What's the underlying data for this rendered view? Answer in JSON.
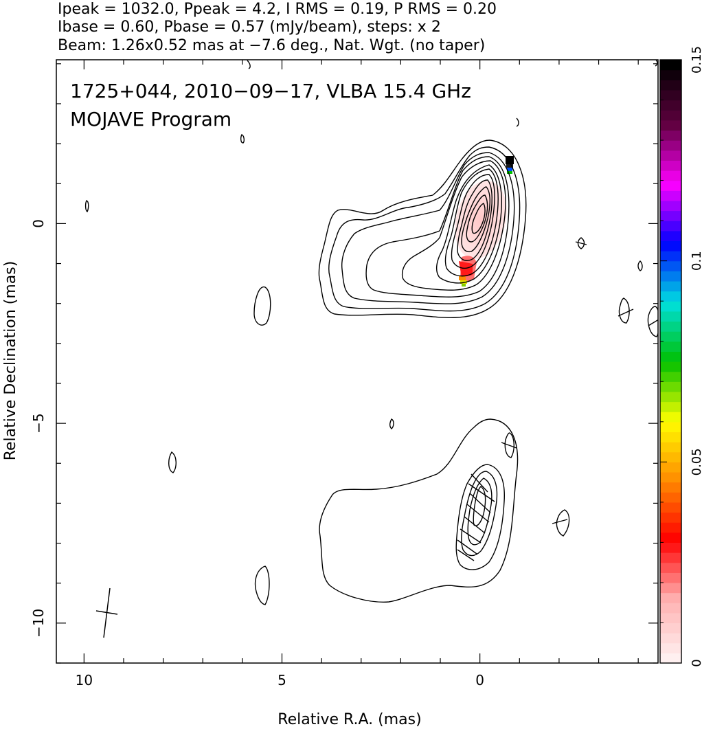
{
  "header": {
    "line1": "Ipeak = 1032.0, Ppeak = 4.2, I RMS = 0.19, P RMS = 0.20",
    "line2": "Ibase = 0.60, Pbase = 0.57 (mJy/beam), steps: x 2",
    "line3": "Beam: 1.26x0.52 mas at −7.6 deg., Nat. Wgt. (no taper)"
  },
  "inset": {
    "title": "1725+044, 2010−09−17, VLBA 15.4 GHz",
    "program": "MOJAVE Program"
  },
  "chart_data": [
    {
      "type": "contour",
      "panel": "total intensity and fractional polarization",
      "xlabel": "Relative R.A. (mas)",
      "ylabel": "Relative Declination (mas)",
      "xlim": [
        10.7,
        -4.5
      ],
      "ylim": [
        -11.0,
        4.1
      ],
      "x_ticks": [
        10,
        5,
        0
      ],
      "x_tick_labels": [
        "10",
        "5",
        "0"
      ],
      "y_ticks": [
        0,
        -5,
        -10
      ],
      "y_tick_labels": [
        "0",
        "−5",
        "−10"
      ],
      "x_axis_reversed": true,
      "intensity_peak_mJy_per_beam": 1032.0,
      "contour_base_mJy_per_beam": 0.6,
      "contour_step_factor": 2,
      "beam": {
        "major_mas": 1.26,
        "minor_mas": 0.52,
        "pa_deg": -7.6
      },
      "fractional_polarization_colorbar": {
        "min": 0,
        "max": 0.15,
        "ticks": [
          0,
          0.05,
          0.1,
          0.15
        ],
        "tick_labels": [
          "0",
          "0.05",
          "0.1",
          "0.15"
        ],
        "palette": [
          "#fff0f0",
          "#ffb0b0",
          "#ff0000",
          "#ff8c00",
          "#ffff00",
          "#00c000",
          "#00e0e0",
          "#0000ff",
          "#ff00ff",
          "#600040",
          "#000000"
        ]
      }
    },
    {
      "type": "contour",
      "panel": "linear polarization with EVPA ticks",
      "xlim": [
        10.7,
        -4.5
      ],
      "ylim": [
        -11.0,
        4.1
      ],
      "x_axis_reversed": true,
      "polarization_peak_mJy_per_beam": 4.2,
      "contour_base_mJy_per_beam": 0.57
    }
  ]
}
